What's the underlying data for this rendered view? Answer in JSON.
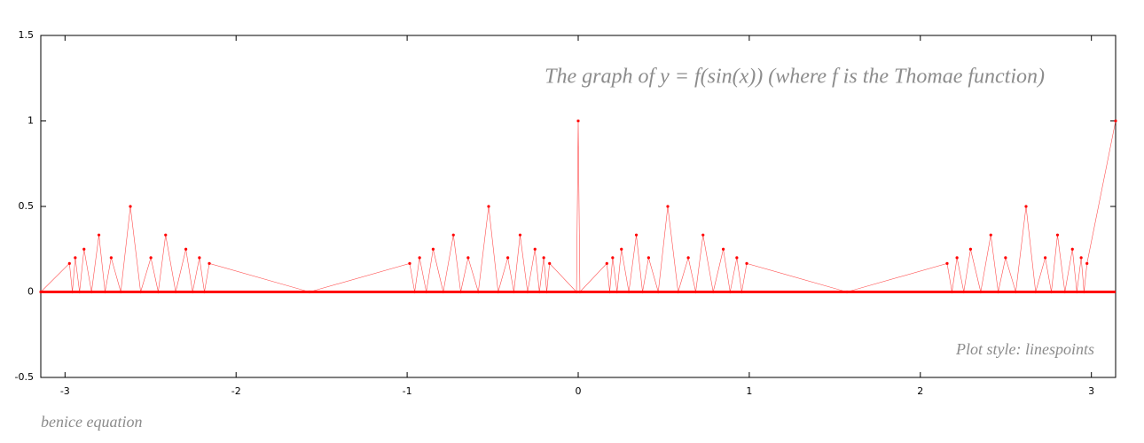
{
  "chart_data": {
    "type": "line",
    "style": "linespoints",
    "title": "The graph of y = f(sin(x))  (where f is the Thomae function)",
    "annotation": "Plot style: linespoints",
    "credit": "benice equation",
    "color": "#ff0000",
    "xlim": [
      -3.1416,
      3.1416
    ],
    "xticks": [
      -3,
      -2,
      -1,
      0,
      1,
      2,
      3
    ],
    "ylim": [
      -0.5,
      1.5
    ],
    "yticks": [
      -0.5,
      0,
      0.5,
      1,
      1.5
    ],
    "x": [
      -3.1416,
      -2.9742,
      -2.957,
      -2.9402,
      -2.915,
      -2.8889,
      -2.845,
      -2.8018,
      -2.766,
      -2.7301,
      -2.674,
      -2.618,
      -2.558,
      -2.4981,
      -2.455,
      -2.4119,
      -2.353,
      -2.2935,
      -2.254,
      -2.2143,
      -2.185,
      -2.1565,
      -1.571,
      -0.9851,
      -0.956,
      -0.9273,
      -0.888,
      -0.8481,
      -0.789,
      -0.7297,
      -0.687,
      -0.6435,
      -0.584,
      -0.5236,
      -0.468,
      -0.4115,
      -0.376,
      -0.3398,
      -0.296,
      -0.2527,
      -0.227,
      -0.2014,
      -0.184,
      -0.1674,
      -0.01,
      0,
      0.01,
      0.1674,
      0.184,
      0.2014,
      0.227,
      0.2527,
      0.296,
      0.3398,
      0.376,
      0.4115,
      0.468,
      0.5236,
      0.584,
      0.6435,
      0.687,
      0.7297,
      0.789,
      0.8481,
      0.888,
      0.9273,
      0.956,
      0.9851,
      1.571,
      2.1565,
      2.185,
      2.2143,
      2.254,
      2.2935,
      2.353,
      2.4119,
      2.455,
      2.4981,
      2.558,
      2.618,
      2.674,
      2.7301,
      2.766,
      2.8018,
      2.845,
      2.8889,
      2.915,
      2.9402,
      2.957,
      2.9742,
      3.1416
    ],
    "values": [
      0,
      0.1667,
      0,
      0.2,
      0,
      0.25,
      0,
      0.3333,
      0,
      0.2,
      0,
      0.5,
      0,
      0.2,
      0,
      0.3333,
      0,
      0.25,
      0,
      0.2,
      0,
      0.1667,
      0,
      0.1667,
      0,
      0.2,
      0,
      0.25,
      0,
      0.3333,
      0,
      0.2,
      0,
      0.5,
      0,
      0.2,
      0,
      0.3333,
      0,
      0.25,
      0,
      0.2,
      0,
      0.1667,
      0,
      1,
      0,
      0.1667,
      0,
      0.2,
      0,
      0.25,
      0,
      0.3333,
      0,
      0.2,
      0,
      0.5,
      0,
      0.2,
      0,
      0.3333,
      0,
      0.25,
      0,
      0.2,
      0,
      0.1667,
      0,
      0.1667,
      0,
      0.2,
      0,
      0.25,
      0,
      0.3333,
      0,
      0.2,
      0,
      0.5,
      0,
      0.2,
      0,
      0.3333,
      0,
      0.25,
      0,
      0.2,
      0,
      0.1667,
      1
    ]
  }
}
